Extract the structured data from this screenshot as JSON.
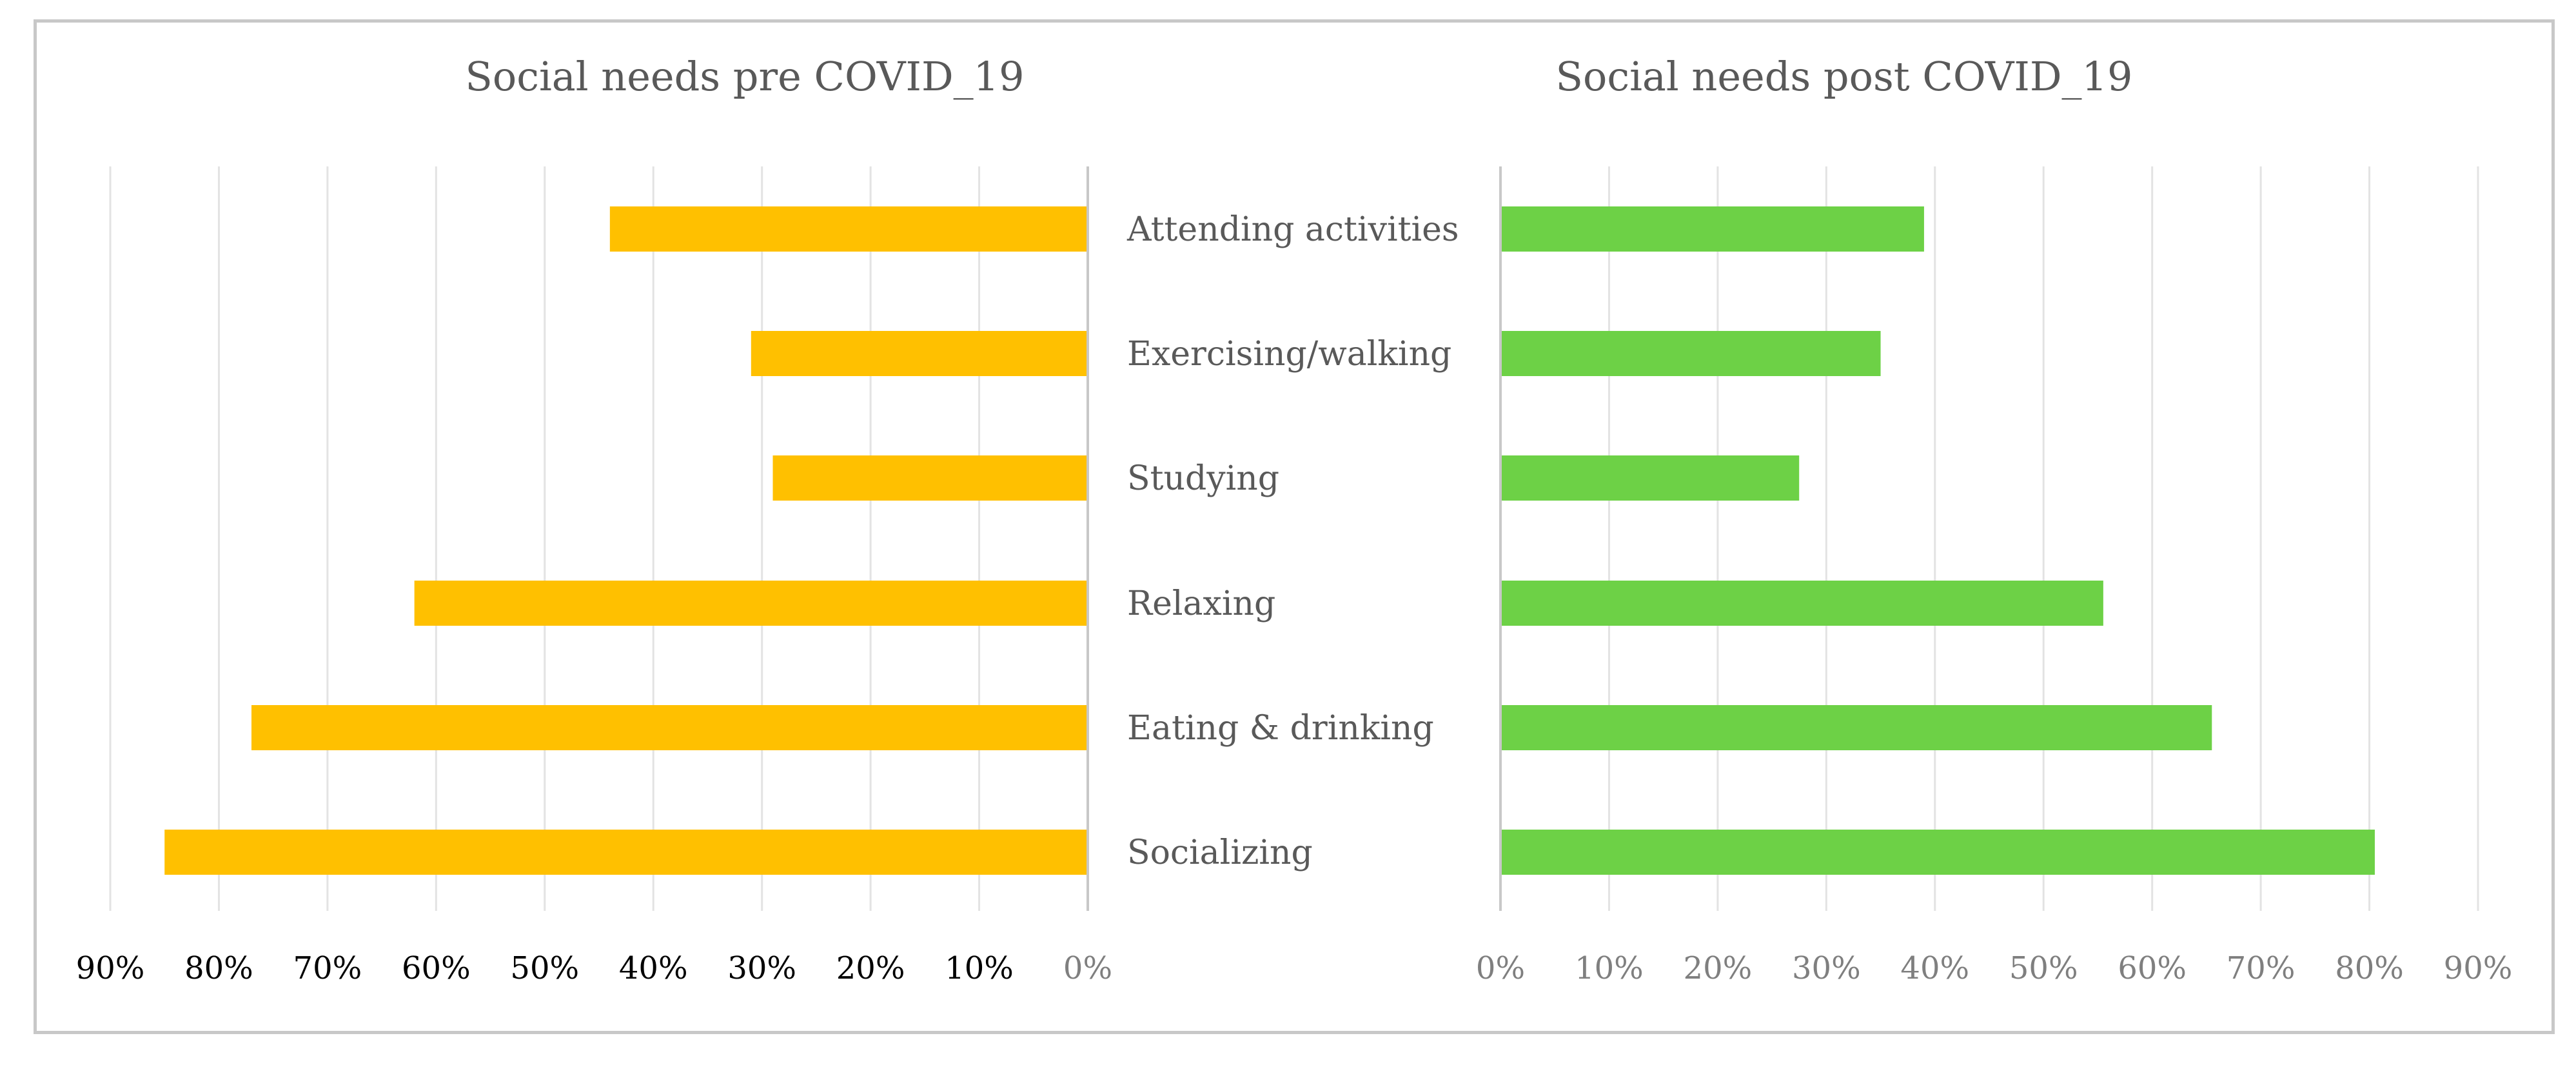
{
  "chart_data": [
    {
      "type": "bar",
      "orientation": "horizontal",
      "direction": "right-to-left",
      "title": "Social needs pre COVID_19",
      "categories": [
        "Attending activities",
        "Exercising/walking",
        "Studying",
        "Relaxing",
        "Eating & drinking",
        "Socializing"
      ],
      "series": [
        {
          "name": "pre COVID_19",
          "values": [
            44,
            31,
            29,
            62,
            77,
            85
          ],
          "color": "#ffc000"
        }
      ],
      "xlim": [
        0,
        90
      ],
      "x_ticks": [
        "90%",
        "80%",
        "70%",
        "60%",
        "50%",
        "40%",
        "30%",
        "20%",
        "10%",
        "0%"
      ],
      "grid": true
    },
    {
      "type": "bar",
      "orientation": "horizontal",
      "direction": "left-to-right",
      "title": "Social needs post COVID_19",
      "categories": [
        "Attending activities",
        "Exercising/walking",
        "Studying",
        "Relaxing",
        "Eating & drinking",
        "Socializing"
      ],
      "series": [
        {
          "name": "post COVID_19",
          "values": [
            39,
            35,
            27.5,
            55.5,
            65.5,
            80.5
          ],
          "color": "#6dd146"
        }
      ],
      "xlim": [
        0,
        90
      ],
      "x_ticks": [
        "0%",
        "10%",
        "20%",
        "30%",
        "40%",
        "50%",
        "60%",
        "70%",
        "80%",
        "90%"
      ],
      "grid": true
    }
  ],
  "colors": {
    "grid": "#e3e3e3",
    "axis": "#c8c8c8",
    "frame": "#c8c8c8"
  }
}
